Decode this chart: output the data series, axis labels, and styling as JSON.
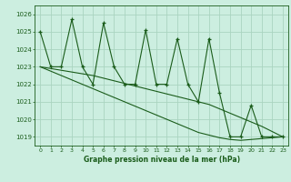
{
  "x": [
    0,
    1,
    2,
    3,
    4,
    5,
    6,
    7,
    8,
    9,
    10,
    11,
    12,
    13,
    14,
    15,
    16,
    17,
    18,
    19,
    20,
    21,
    22,
    23
  ],
  "y_main": [
    1025,
    1023,
    1023,
    1025.7,
    1023,
    1022,
    1025.5,
    1023,
    1022,
    1022,
    1025.1,
    1022,
    1022,
    1024.6,
    1022,
    1021,
    1024.6,
    1021.5,
    1019,
    1019,
    1020.8,
    1019,
    1019,
    1019
  ],
  "y_trend1": [
    1023.0,
    1022.9,
    1022.8,
    1022.7,
    1022.6,
    1022.5,
    1022.35,
    1022.2,
    1022.05,
    1021.9,
    1021.75,
    1021.6,
    1021.45,
    1021.3,
    1021.15,
    1021.0,
    1020.85,
    1020.6,
    1020.35,
    1020.1,
    1019.85,
    1019.6,
    1019.3,
    1019.0
  ],
  "y_trend2": [
    1023.0,
    1022.75,
    1022.5,
    1022.25,
    1022.0,
    1021.75,
    1021.5,
    1021.25,
    1021.0,
    1020.75,
    1020.5,
    1020.25,
    1020.0,
    1019.75,
    1019.5,
    1019.25,
    1019.1,
    1018.95,
    1018.85,
    1018.8,
    1018.85,
    1018.9,
    1018.95,
    1019.0
  ],
  "background_color": "#cceee0",
  "grid_color": "#aad4c0",
  "line_color": "#1a5c1a",
  "xlabel": "Graphe pression niveau de la mer (hPa)",
  "yticks": [
    1019,
    1020,
    1021,
    1022,
    1023,
    1024,
    1025,
    1026
  ],
  "xticks": [
    0,
    1,
    2,
    3,
    4,
    5,
    6,
    7,
    8,
    9,
    10,
    11,
    12,
    13,
    14,
    15,
    16,
    17,
    18,
    19,
    20,
    21,
    22,
    23
  ],
  "ylim": [
    1018.5,
    1026.5
  ],
  "xlim": [
    -0.5,
    23.5
  ],
  "figsize": [
    3.2,
    2.0
  ],
  "dpi": 100
}
